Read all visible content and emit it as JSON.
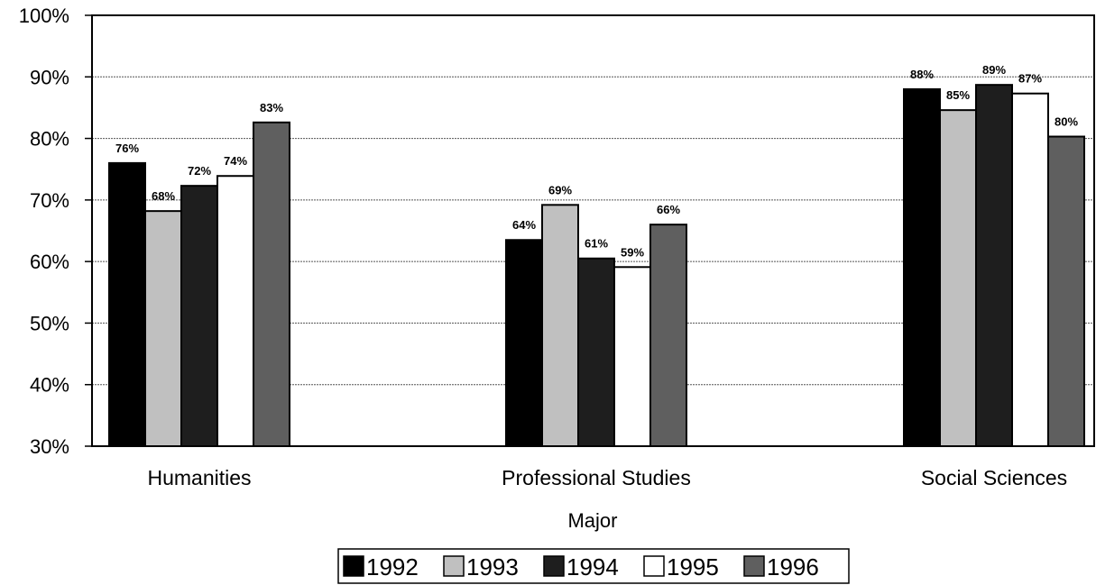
{
  "chart_data": {
    "type": "bar",
    "xlabel": "Major",
    "ylabel": "",
    "ylim": [
      30,
      100
    ],
    "yticks": [
      "30%",
      "40%",
      "50%",
      "60%",
      "70%",
      "80%",
      "90%",
      "100%"
    ],
    "grid": true,
    "legend_position": "bottom",
    "categories": [
      "Humanities",
      "Professional Studies",
      "Social Sciences"
    ],
    "series": [
      {
        "name": "1992",
        "color": "#000000",
        "values": [
          76,
          63.5,
          88
        ],
        "labels": [
          "76%",
          "64%",
          "88%"
        ]
      },
      {
        "name": "1993",
        "color": "#c0c0c0",
        "values": [
          68.2,
          69.2,
          84.6
        ],
        "labels": [
          "68%",
          "69%",
          "85%"
        ]
      },
      {
        "name": "1994",
        "color": "#1e1e1e",
        "values": [
          72.3,
          60.5,
          88.7
        ],
        "labels": [
          "72%",
          "61%",
          "89%"
        ]
      },
      {
        "name": "1995",
        "color": "#ffffff",
        "values": [
          73.9,
          59.1,
          87.3
        ],
        "labels": [
          "74%",
          "59%",
          "87%"
        ]
      },
      {
        "name": "1996",
        "color": "#5f5f5f",
        "values": [
          82.6,
          66.0,
          80.3
        ],
        "labels": [
          "83%",
          "66%",
          "80%"
        ]
      }
    ]
  }
}
